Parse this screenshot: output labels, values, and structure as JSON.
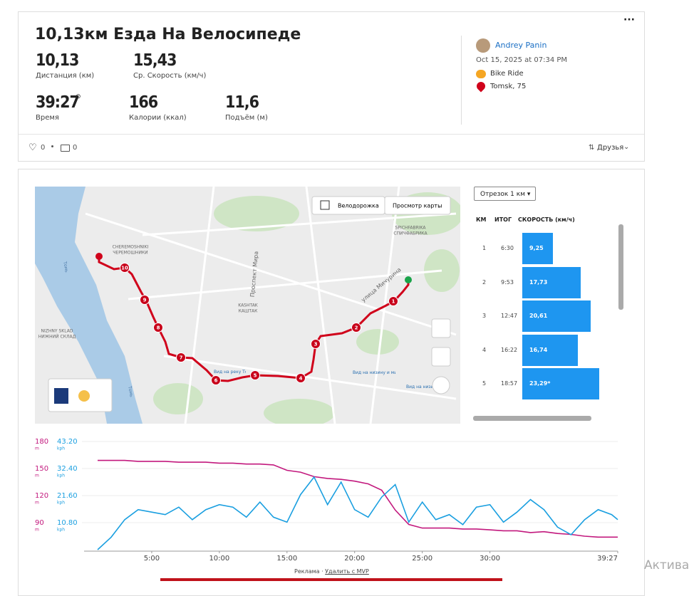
{
  "header": {
    "title": "10,13км Езда На Велосипеде",
    "menu": "···",
    "stats": [
      {
        "value": "10,13",
        "label": "Дистанция (км)"
      },
      {
        "value": "15,43",
        "label": "Ср. Скорость (км/ч)"
      },
      {
        "value": "39:27",
        "label": "Время"
      },
      {
        "value": "166",
        "label": "Калории (ккал)"
      },
      {
        "value": "11,6",
        "label": "Подъём (м)"
      }
    ],
    "athlete": "Andrey Panin",
    "date": "Oct 15, 2025 at 07:34 PM",
    "activity_type": "Bike Ride",
    "location": "Tomsk, 75",
    "likes": "0",
    "comments": "0",
    "visibility": "Друзья"
  },
  "map": {
    "bike_lanes": "Велодорожка",
    "view": "Просмотр карты",
    "labels": [
      "CHEREMOSHNIKI",
      "ЧЕРЕМОШНИКИ",
      "Проспект Мира",
      "улица Мичурина",
      "KASHTAK",
      "КАШТАК",
      "NIZHNY SKLAD",
      "НИЖНИЙ СКЛАД",
      "SPICHFABRIKA",
      "СПИЧФАБРИКА",
      "Томь",
      "Томь",
      "Вид на низину и микрорайон «Зелёные Горки»",
      "Вид на низину и микрорайон «Зелёные Горки»",
      "Вид на реку Томь"
    ],
    "markers": [
      "1",
      "2",
      "3",
      "4",
      "5",
      "6",
      "7",
      "8",
      "9",
      "10"
    ]
  },
  "splits": {
    "selector": "Отрезок 1 км",
    "columns": [
      "КМ",
      "ИТОГ",
      "СКОРОСТЬ (км/ч)"
    ],
    "km": [
      1,
      2,
      3,
      4,
      5
    ],
    "total": [
      "6:30",
      "9:53",
      "12:47",
      "16:22",
      "18:57"
    ],
    "speed": [
      9.25,
      17.73,
      20.61,
      16.74,
      23.29
    ],
    "speed_labels": [
      "9,25",
      "17,73",
      "20,61",
      "16,74",
      "23,29*"
    ]
  },
  "chart_data": {
    "type": "line",
    "x": [
      1,
      2,
      3,
      4,
      5,
      6,
      7,
      8,
      9,
      10,
      11,
      12,
      13,
      14,
      15,
      16,
      17,
      18,
      19,
      20,
      21,
      22,
      23,
      24,
      25,
      26,
      27,
      28,
      29,
      30,
      31,
      32,
      33,
      34,
      35,
      36,
      37,
      38,
      39,
      39.45
    ],
    "series": [
      {
        "name": "m",
        "color": "#c2187d",
        "values": [
          159,
          159,
          159,
          158,
          158,
          158,
          157,
          157,
          157,
          156,
          156,
          155,
          155,
          154,
          148,
          146,
          141,
          139,
          138,
          136,
          133,
          126,
          104,
          88,
          84,
          84,
          84,
          83,
          83,
          82,
          81,
          81,
          79,
          80,
          78,
          77,
          75,
          74,
          74,
          74
        ]
      },
      {
        "name": "kph",
        "color": "#1a9fe0",
        "axis": "y2",
        "values": [
          0,
          5,
          12,
          16,
          15,
          14,
          17,
          12,
          16,
          18,
          17,
          13,
          19,
          13,
          11,
          22,
          29,
          18,
          27,
          16,
          13,
          21,
          26,
          11,
          19,
          12,
          14,
          10,
          17,
          18,
          11,
          15,
          20,
          16,
          9,
          6,
          12,
          16,
          14,
          12
        ]
      }
    ],
    "xlim": [
      0,
      39.45
    ],
    "xticks": [
      {
        "value": 5,
        "label": "5:00"
      },
      {
        "value": 10,
        "label": "10:00"
      },
      {
        "value": 15,
        "label": "15:00"
      },
      {
        "value": 20,
        "label": "20:00"
      },
      {
        "value": 25,
        "label": "25:00"
      },
      {
        "value": 30,
        "label": "30:00"
      },
      {
        "value": 39.45,
        "label": "39:27"
      }
    ],
    "ylim": [
      60,
      180
    ],
    "yticks": [
      90,
      120,
      150,
      180
    ],
    "y2lim": [
      0,
      43.2
    ],
    "y2ticks": [
      {
        "value": 10.8,
        "label": "10.80"
      },
      {
        "value": 21.6,
        "label": "21.60"
      },
      {
        "value": 32.4,
        "label": "32.40"
      },
      {
        "value": 43.2,
        "label": "43.20"
      }
    ],
    "grid": true
  },
  "footer": {
    "ad": "Реклама ·",
    "remove": "Удалить с MVP",
    "watermark": "Актива"
  }
}
